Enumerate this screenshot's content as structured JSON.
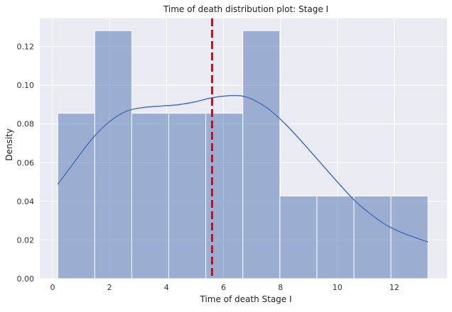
{
  "chart_data": {
    "type": "bar",
    "subtype": "histogram-with-kde",
    "title": "Time of death distribution plot: Stage I",
    "xlabel": "Time of death Stage I",
    "ylabel": "Density",
    "xlim": [
      -0.45,
      13.85
    ],
    "ylim": [
      0,
      0.1345
    ],
    "xticks": [
      0,
      2,
      4,
      6,
      8,
      10,
      12
    ],
    "yticks": [
      0.0,
      0.02,
      0.04,
      0.06,
      0.08,
      0.1,
      0.12
    ],
    "ytick_labels": [
      "0.00",
      "0.02",
      "0.04",
      "0.06",
      "0.08",
      "0.10",
      "0.12"
    ],
    "grid": true,
    "background_color": "#eaeaf2",
    "bar_color": "#4c72b0",
    "kde_color": "#4c72b0",
    "vline_color": "#e8000b",
    "bins": [
      {
        "x0": 0.18,
        "x1": 1.48,
        "density": 0.0855
      },
      {
        "x0": 1.48,
        "x1": 2.78,
        "density": 0.1282
      },
      {
        "x0": 2.78,
        "x1": 4.08,
        "density": 0.0855
      },
      {
        "x0": 4.08,
        "x1": 5.38,
        "density": 0.0855
      },
      {
        "x0": 5.38,
        "x1": 6.68,
        "density": 0.0855
      },
      {
        "x0": 6.68,
        "x1": 7.98,
        "density": 0.1282
      },
      {
        "x0": 7.98,
        "x1": 9.28,
        "density": 0.0427
      },
      {
        "x0": 9.28,
        "x1": 10.58,
        "density": 0.0427
      },
      {
        "x0": 10.58,
        "x1": 11.88,
        "density": 0.0427
      },
      {
        "x0": 11.88,
        "x1": 13.18,
        "density": 0.0427
      }
    ],
    "kde": {
      "x": [
        0.18,
        0.8,
        1.4,
        2.0,
        2.6,
        3.2,
        3.8,
        4.4,
        5.0,
        5.6,
        6.2,
        6.6,
        7.0,
        7.6,
        8.2,
        8.8,
        9.4,
        10.0,
        10.6,
        11.2,
        11.8,
        12.4,
        13.18
      ],
      "y": [
        0.0487,
        0.061,
        0.0725,
        0.0812,
        0.0866,
        0.0885,
        0.0892,
        0.0899,
        0.0914,
        0.0935,
        0.0946,
        0.0945,
        0.0928,
        0.0875,
        0.0795,
        0.07,
        0.06,
        0.05,
        0.0405,
        0.033,
        0.027,
        0.023,
        0.019
      ]
    },
    "vline": {
      "x": 5.6,
      "style": "dashed"
    }
  }
}
